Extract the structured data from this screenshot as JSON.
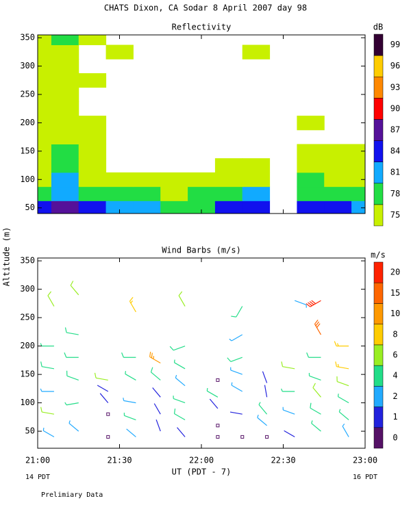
{
  "title": "CHATS Dixon, CA  Sodar   8 April 2007   day  98",
  "y_label": "Altitude (m)",
  "x_label": "UT  (PDT - 7)",
  "x_start_note": "14 PDT",
  "x_end_note": "16 PDT",
  "footnote": "Prelimiary Data",
  "chart_data": [
    {
      "type": "contour",
      "title": "Reflectivity",
      "xlim": [
        21,
        23
      ],
      "xticks": [
        21,
        21.5,
        22,
        22.5,
        23
      ],
      "ylim": [
        40,
        355
      ],
      "yticks": [
        50,
        100,
        150,
        200,
        250,
        300,
        350
      ],
      "times": [
        21,
        21.1667,
        21.3333,
        21.5,
        21.6667,
        21.8333,
        22,
        22.1667,
        22.3333,
        22.5,
        22.6667,
        22.8333,
        23
      ],
      "altitudes": [
        50,
        75,
        100,
        125,
        150,
        175,
        200,
        225,
        250,
        275,
        300,
        325,
        350
      ],
      "values": [
        [
          86,
          87,
          84,
          82,
          83,
          80,
          79,
          85,
          85,
          null,
          84,
          85,
          83
        ],
        [
          80,
          82,
          79,
          79,
          79,
          77,
          78,
          80,
          82,
          null,
          79,
          80,
          79
        ],
        [
          77,
          81,
          77,
          76,
          76,
          75,
          76,
          77,
          77,
          null,
          78,
          76,
          77
        ],
        [
          76,
          78,
          76,
          null,
          null,
          null,
          null,
          75,
          76,
          null,
          77,
          76,
          76
        ],
        [
          76,
          78,
          76,
          null,
          null,
          null,
          null,
          null,
          null,
          null,
          76,
          76,
          75
        ],
        [
          76,
          77,
          76,
          null,
          null,
          null,
          null,
          null,
          null,
          null,
          null,
          null,
          null
        ],
        [
          76,
          76,
          75,
          null,
          null,
          null,
          null,
          null,
          null,
          null,
          75,
          null,
          null
        ],
        [
          75,
          76,
          null,
          null,
          null,
          null,
          null,
          null,
          null,
          null,
          null,
          null,
          null
        ],
        [
          76,
          77,
          null,
          null,
          null,
          null,
          null,
          null,
          null,
          null,
          null,
          null,
          null
        ],
        [
          76,
          76,
          75,
          null,
          null,
          null,
          null,
          null,
          null,
          null,
          null,
          null,
          null
        ],
        [
          75,
          76,
          null,
          null,
          null,
          null,
          null,
          null,
          null,
          null,
          null,
          null,
          null
        ],
        [
          75,
          76,
          null,
          75,
          null,
          null,
          null,
          null,
          75,
          null,
          null,
          null,
          null
        ],
        [
          75,
          78,
          75,
          null,
          null,
          null,
          null,
          null,
          null,
          null,
          null,
          null,
          null
        ]
      ],
      "colorbar": {
        "unit": "dB",
        "levels": [
          75,
          78,
          81,
          84,
          87,
          90,
          93,
          96,
          99
        ],
        "colors": [
          "#c8f000",
          "#22dd44",
          "#11aaff",
          "#1111ee",
          "#551199",
          "#ff0000",
          "#ff8800",
          "#ffcc00",
          "#330033"
        ]
      }
    },
    {
      "type": "barbs",
      "title": "Wind Barbs (m/s)",
      "xlim": [
        21,
        23
      ],
      "xticks": [
        {
          "value": 21,
          "label": "21:00"
        },
        {
          "value": 21.5,
          "label": "21:30"
        },
        {
          "value": 22,
          "label": "22:00"
        },
        {
          "value": 22.5,
          "label": "22:30"
        },
        {
          "value": 23,
          "label": "23:00"
        }
      ],
      "ylim": [
        20,
        355
      ],
      "yticks": [
        50,
        100,
        150,
        200,
        250,
        300,
        350
      ],
      "time": [
        21.1,
        21.1,
        21.1,
        21.1,
        21.1,
        21.1,
        21.25,
        21.25,
        21.25,
        21.25,
        21.25,
        21.25,
        21.43,
        21.43,
        21.43,
        21.43,
        21.43,
        21.6,
        21.6,
        21.6,
        21.6,
        21.6,
        21.6,
        21.75,
        21.75,
        21.75,
        21.75,
        21.75,
        21.9,
        21.9,
        21.9,
        21.9,
        21.9,
        21.9,
        21.9,
        22.1,
        22.1,
        22.1,
        22.1,
        22.1,
        22.25,
        22.25,
        22.25,
        22.25,
        22.25,
        22.25,
        22.25,
        22.4,
        22.4,
        22.4,
        22.4,
        22.4,
        22.57,
        22.57,
        22.57,
        22.57,
        22.57,
        22.73,
        22.73,
        22.73,
        22.73,
        22.73,
        22.73,
        22.73,
        22.9,
        22.9,
        22.9,
        22.9,
        22.9,
        22.9
      ],
      "altitude": [
        40,
        80,
        120,
        160,
        200,
        270,
        50,
        100,
        140,
        180,
        220,
        290,
        40,
        80,
        100,
        120,
        140,
        40,
        70,
        100,
        140,
        180,
        260,
        50,
        80,
        110,
        140,
        170,
        40,
        70,
        100,
        130,
        160,
        200,
        270,
        40,
        60,
        90,
        110,
        140,
        40,
        80,
        120,
        150,
        180,
        220,
        270,
        40,
        60,
        80,
        110,
        135,
        40,
        80,
        120,
        160,
        280,
        50,
        80,
        110,
        140,
        180,
        220,
        280,
        40,
        70,
        100,
        130,
        160,
        200
      ],
      "speed": [
        3,
        6,
        3,
        5,
        4,
        6,
        3,
        4,
        5,
        5,
        5,
        7,
        0.3,
        0.3,
        1.5,
        1.5,
        6,
        2,
        4,
        3,
        4,
        5,
        9,
        1,
        1,
        1.5,
        5,
        13,
        1,
        5,
        4,
        3,
        4,
        5,
        6,
        0.3,
        0.3,
        1,
        4,
        0.3,
        0.3,
        1,
        3,
        3,
        5,
        3,
        5,
        0.3,
        3,
        4,
        1,
        1,
        1,
        3,
        4,
        7,
        3,
        4,
        5,
        6,
        4,
        5,
        15,
        20,
        3,
        4,
        4,
        6,
        8,
        8
      ],
      "direction": [
        300,
        280,
        270,
        280,
        270,
        330,
        310,
        260,
        290,
        270,
        280,
        320,
        200,
        330,
        320,
        300,
        280,
        310,
        290,
        280,
        300,
        270,
        330,
        340,
        330,
        320,
        310,
        300,
        320,
        300,
        290,
        310,
        300,
        250,
        330,
        200,
        220,
        320,
        300,
        200,
        330,
        280,
        300,
        290,
        250,
        240,
        210,
        200,
        310,
        320,
        350,
        340,
        300,
        290,
        270,
        280,
        110,
        310,
        300,
        320,
        290,
        270,
        330,
        240,
        330,
        310,
        300,
        290,
        280,
        270
      ],
      "colorbar": {
        "unit": "m/s",
        "levels": [
          0,
          1,
          2,
          4,
          6,
          8,
          10,
          15,
          20
        ],
        "colors": [
          "#551166",
          "#2222dd",
          "#22aaff",
          "#22dd88",
          "#99ee22",
          "#ffcc00",
          "#ff9900",
          "#ff6600",
          "#ff2200"
        ]
      }
    }
  ]
}
